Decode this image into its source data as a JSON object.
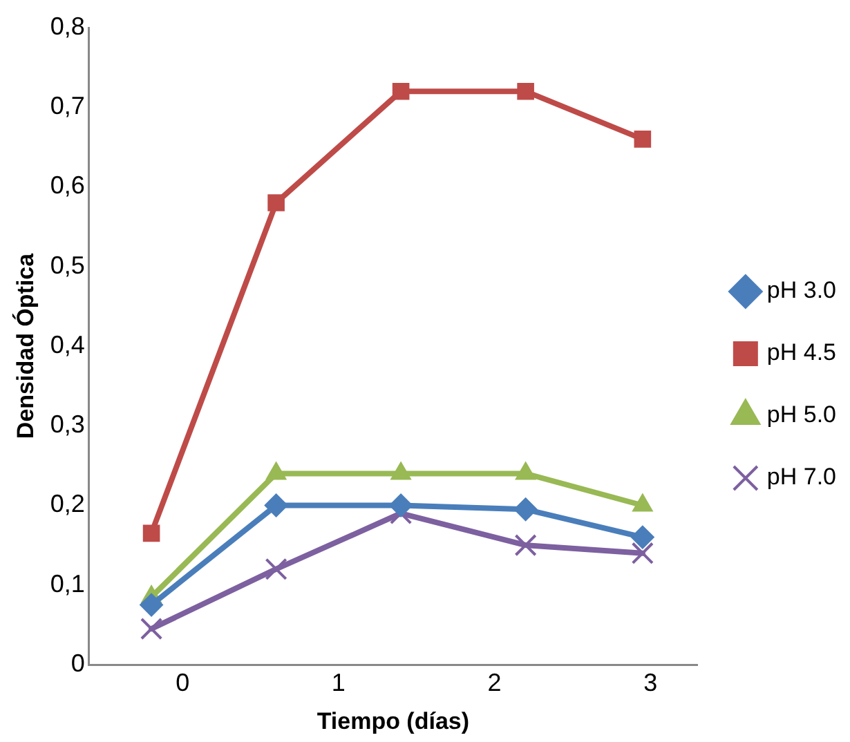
{
  "chart_data": {
    "type": "line",
    "xlabel": "Tiempo (días)",
    "ylabel": "Densidad Óptica",
    "x": [
      -0.2,
      0.6,
      1.4,
      2.2,
      2.95
    ],
    "xlim": [
      -0.6,
      3.3
    ],
    "xticks": [
      0,
      1,
      2,
      3
    ],
    "ylim": [
      0,
      0.8
    ],
    "yticks": [
      {
        "value": 0,
        "label": "0"
      },
      {
        "value": 0.1,
        "label": "0,1"
      },
      {
        "value": 0.2,
        "label": "0,2"
      },
      {
        "value": 0.3,
        "label": "0,3"
      },
      {
        "value": 0.4,
        "label": "0,4"
      },
      {
        "value": 0.5,
        "label": "0,5"
      },
      {
        "value": 0.6,
        "label": "0,6"
      },
      {
        "value": 0.7,
        "label": "0,7"
      },
      {
        "value": 0.8,
        "label": "0,8"
      }
    ],
    "series": [
      {
        "name": "pH 3.0",
        "color": "#4a7ebb",
        "marker": "diamond",
        "values": [
          0.075,
          0.2,
          0.2,
          0.195,
          0.16
        ]
      },
      {
        "name": "pH 4.5",
        "color": "#be4b48",
        "marker": "square",
        "values": [
          0.165,
          0.58,
          0.72,
          0.72,
          0.66
        ]
      },
      {
        "name": "pH 5.0",
        "color": "#98b954",
        "marker": "triangle",
        "values": [
          0.085,
          0.24,
          0.24,
          0.24,
          0.2
        ]
      },
      {
        "name": "pH 7.0",
        "color": "#7d60a0",
        "marker": "cross",
        "values": [
          0.045,
          0.12,
          0.19,
          0.15,
          0.14
        ]
      }
    ],
    "grid": false,
    "legend": "right",
    "line_style": "solid"
  }
}
